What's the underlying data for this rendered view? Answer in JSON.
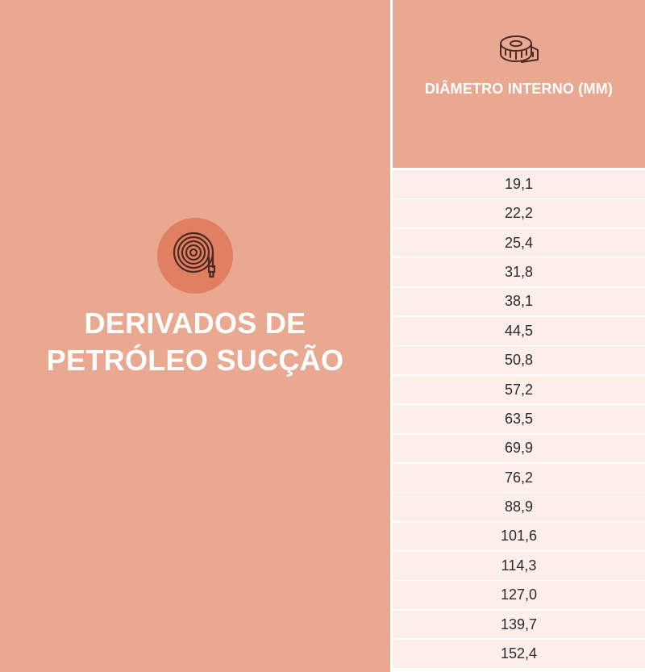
{
  "product": {
    "title_line1": "DERIVADOS DE",
    "title_line2": "PETRÓLEO SUCÇÃO",
    "icon": "hose-reel-icon"
  },
  "table": {
    "header_icon": "measuring-tape-icon",
    "header": "DIÂMETRO INTERNO (MM)",
    "rows": [
      "19,1",
      "22,2",
      "25,4",
      "31,8",
      "38,1",
      "44,5",
      "50,8",
      "57,2",
      "63,5",
      "69,9",
      "76,2",
      "88,9",
      "101,6",
      "114,3",
      "127,0",
      "139,7",
      "152,4"
    ]
  },
  "colors": {
    "panel": "#e9a991",
    "badge": "#e07f61",
    "row": "#fcefea",
    "text": "#2b2b2b"
  }
}
